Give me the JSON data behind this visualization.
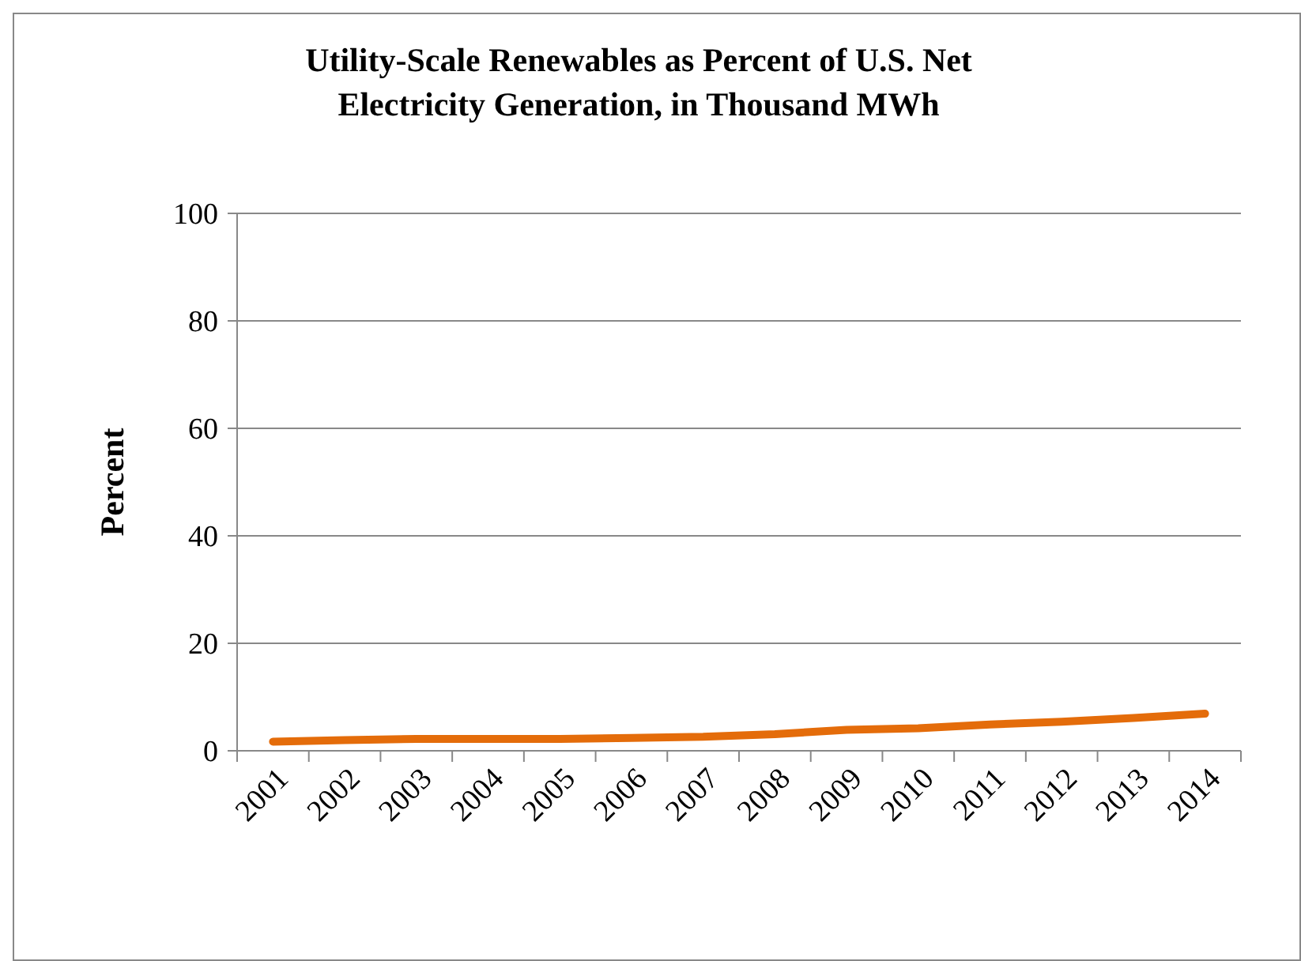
{
  "chart_data": {
    "type": "line",
    "title": "Utility-Scale Renewables as Percent of U.S. Net Electricity Generation, in Thousand MWh",
    "ylabel": "Percent",
    "categories": [
      "2001",
      "2002",
      "2003",
      "2004",
      "2005",
      "2006",
      "2007",
      "2008",
      "2009",
      "2010",
      "2011",
      "2012",
      "2013",
      "2014"
    ],
    "series": [
      {
        "color": "#e46c0a",
        "values": [
          1.7,
          2.0,
          2.2,
          2.2,
          2.2,
          2.4,
          2.6,
          3.1,
          3.9,
          4.2,
          4.9,
          5.4,
          6.1,
          6.9
        ]
      }
    ],
    "ylim": [
      0,
      100
    ],
    "yticks": [
      0,
      20,
      40,
      60,
      80,
      100
    ],
    "grid": "y",
    "marker": "none",
    "line_style": "solid"
  }
}
